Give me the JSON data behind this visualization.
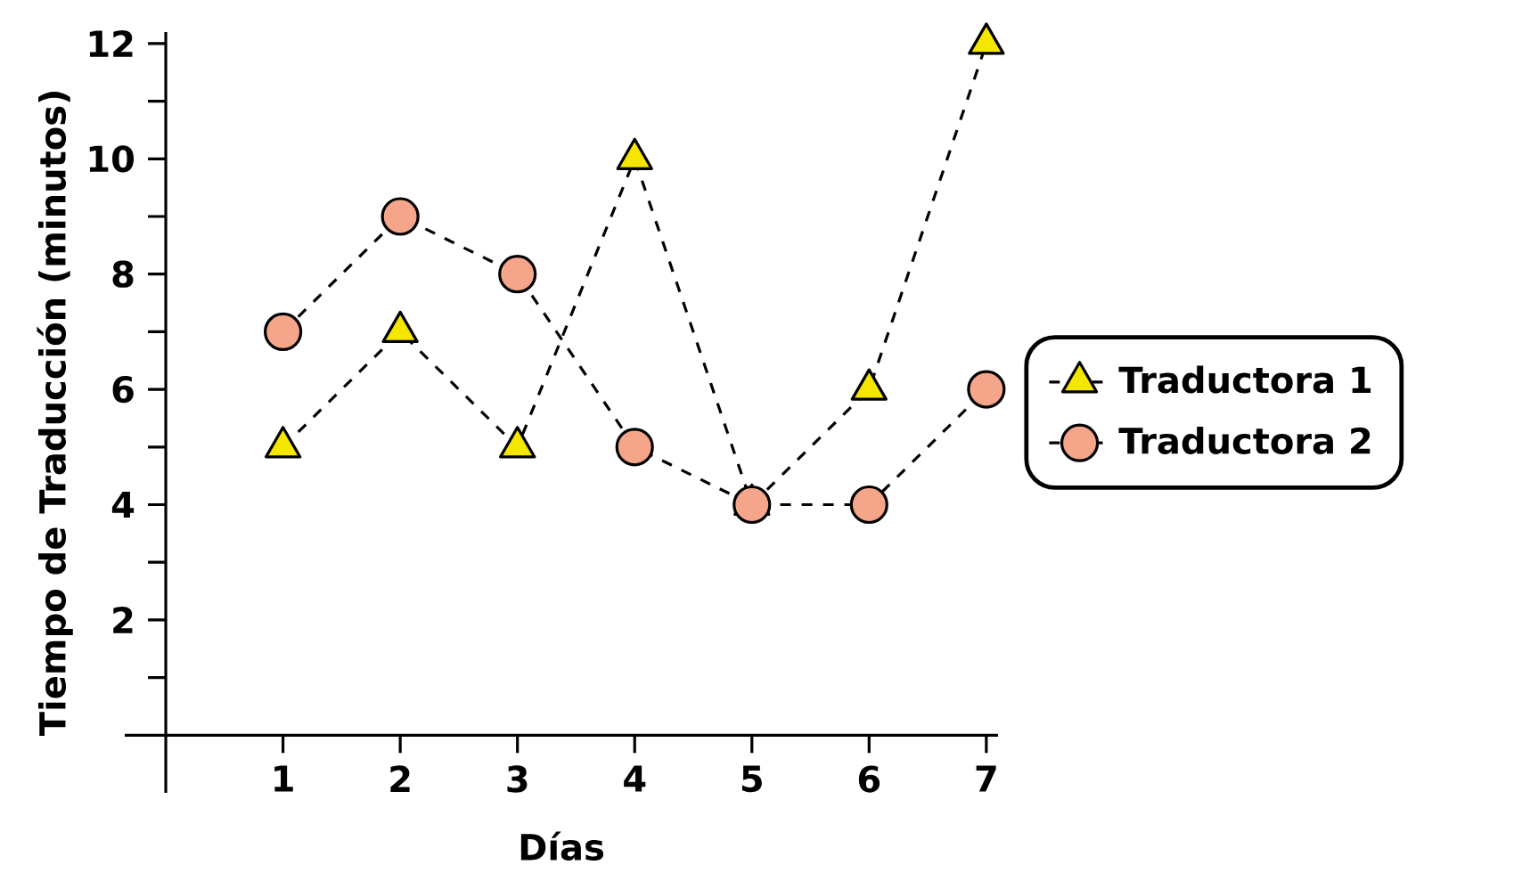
{
  "chart_data": {
    "type": "line",
    "xlabel": "Días",
    "ylabel": "Tiempo de Traducción (minutos)",
    "x": [
      1,
      2,
      3,
      4,
      5,
      6,
      7
    ],
    "xlim": [
      -0.35,
      7.1
    ],
    "ylim": [
      -1,
      12.2
    ],
    "xticks": [
      1,
      2,
      3,
      4,
      5,
      6,
      7
    ],
    "yticks": [
      {
        "value": 1,
        "label": null
      },
      2,
      {
        "value": 3,
        "label": null
      },
      4,
      {
        "value": 5,
        "label": null
      },
      6,
      {
        "value": 7,
        "label": null
      },
      8,
      {
        "value": 9,
        "label": null
      },
      10,
      {
        "value": 11,
        "label": null
      },
      12
    ],
    "line_style": "dashed",
    "legend": "right",
    "grid": false,
    "series": [
      {
        "name": "Traductora 1",
        "color": "#f5e600",
        "marker": "triangle",
        "values": [
          5,
          7,
          5,
          10,
          4,
          6,
          12
        ]
      },
      {
        "name": "Traductora 2",
        "color": "#f4a58a",
        "marker": "circle",
        "values": [
          7,
          9,
          8,
          5,
          4,
          4,
          6
        ]
      }
    ]
  }
}
